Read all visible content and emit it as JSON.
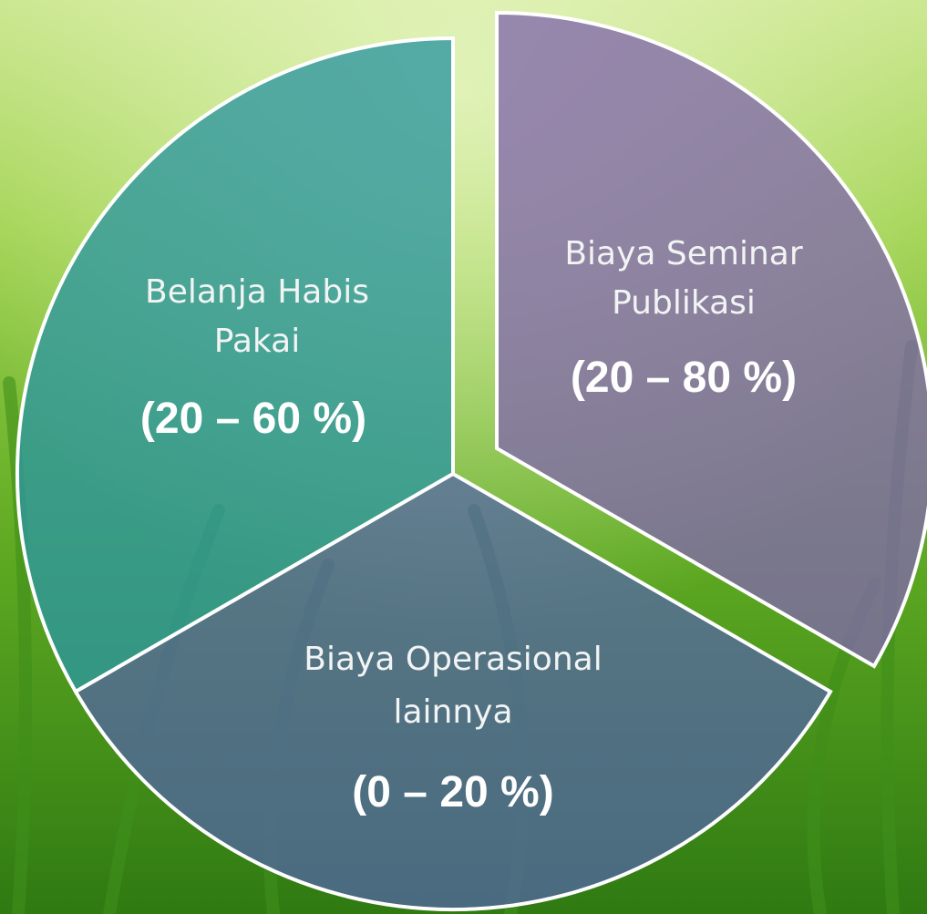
{
  "segments": [
    {
      "label": [
        "Belanja Habis",
        "Pakai"
      ],
      "range": "(20 – 60 %)"
    },
    {
      "label": [
        "Biaya Seminar",
        "Publikasi"
      ],
      "range": "(20 – 80 %)"
    },
    {
      "label": [
        "Biaya Operasional",
        "lainnya"
      ],
      "range": "(0 – 20 %)"
    }
  ]
}
